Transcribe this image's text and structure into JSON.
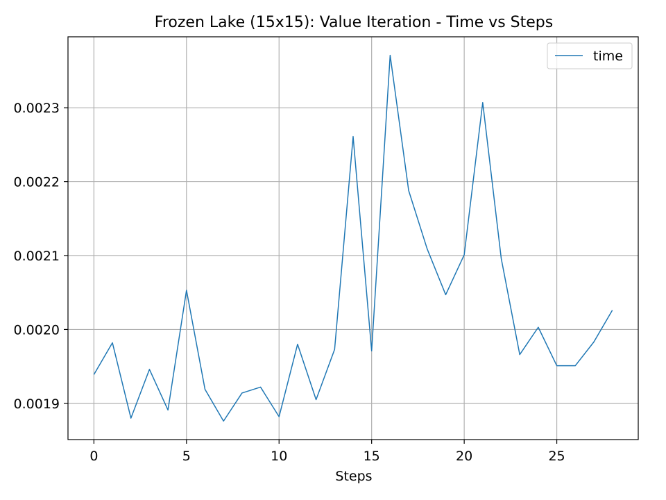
{
  "chart_data": {
    "type": "line",
    "title": "Frozen Lake (15x15): Value Iteration - Time vs Steps",
    "xlabel": "Steps",
    "ylabel": "",
    "xlim": [
      -1.4,
      29.4
    ],
    "ylim": [
      0.001851,
      0.002396
    ],
    "xticks": [
      0,
      5,
      10,
      15,
      20,
      25
    ],
    "yticks": [
      0.0019,
      0.002,
      0.0021,
      0.0022,
      0.0023
    ],
    "ytick_labels": [
      "0.0019",
      "0.0020",
      "0.0021",
      "0.0022",
      "0.0023"
    ],
    "grid": true,
    "legend_position": "top-right",
    "series": [
      {
        "name": "time",
        "color": "#1f77b4",
        "x": [
          0,
          1,
          2,
          3,
          4,
          5,
          6,
          7,
          8,
          9,
          10,
          11,
          12,
          13,
          14,
          15,
          16,
          17,
          18,
          19,
          20,
          21,
          22,
          23,
          24,
          25,
          26,
          27,
          28
        ],
        "y": [
          0.001939,
          0.001982,
          0.00188,
          0.001946,
          0.001891,
          0.002053,
          0.001919,
          0.001876,
          0.001914,
          0.001922,
          0.001882,
          0.00198,
          0.001905,
          0.001973,
          0.002261,
          0.001971,
          0.002371,
          0.002188,
          0.002109,
          0.002047,
          0.002101,
          0.002307,
          0.002096,
          0.001966,
          0.002003,
          0.001951,
          0.001951,
          0.001983,
          0.002026
        ]
      }
    ]
  }
}
